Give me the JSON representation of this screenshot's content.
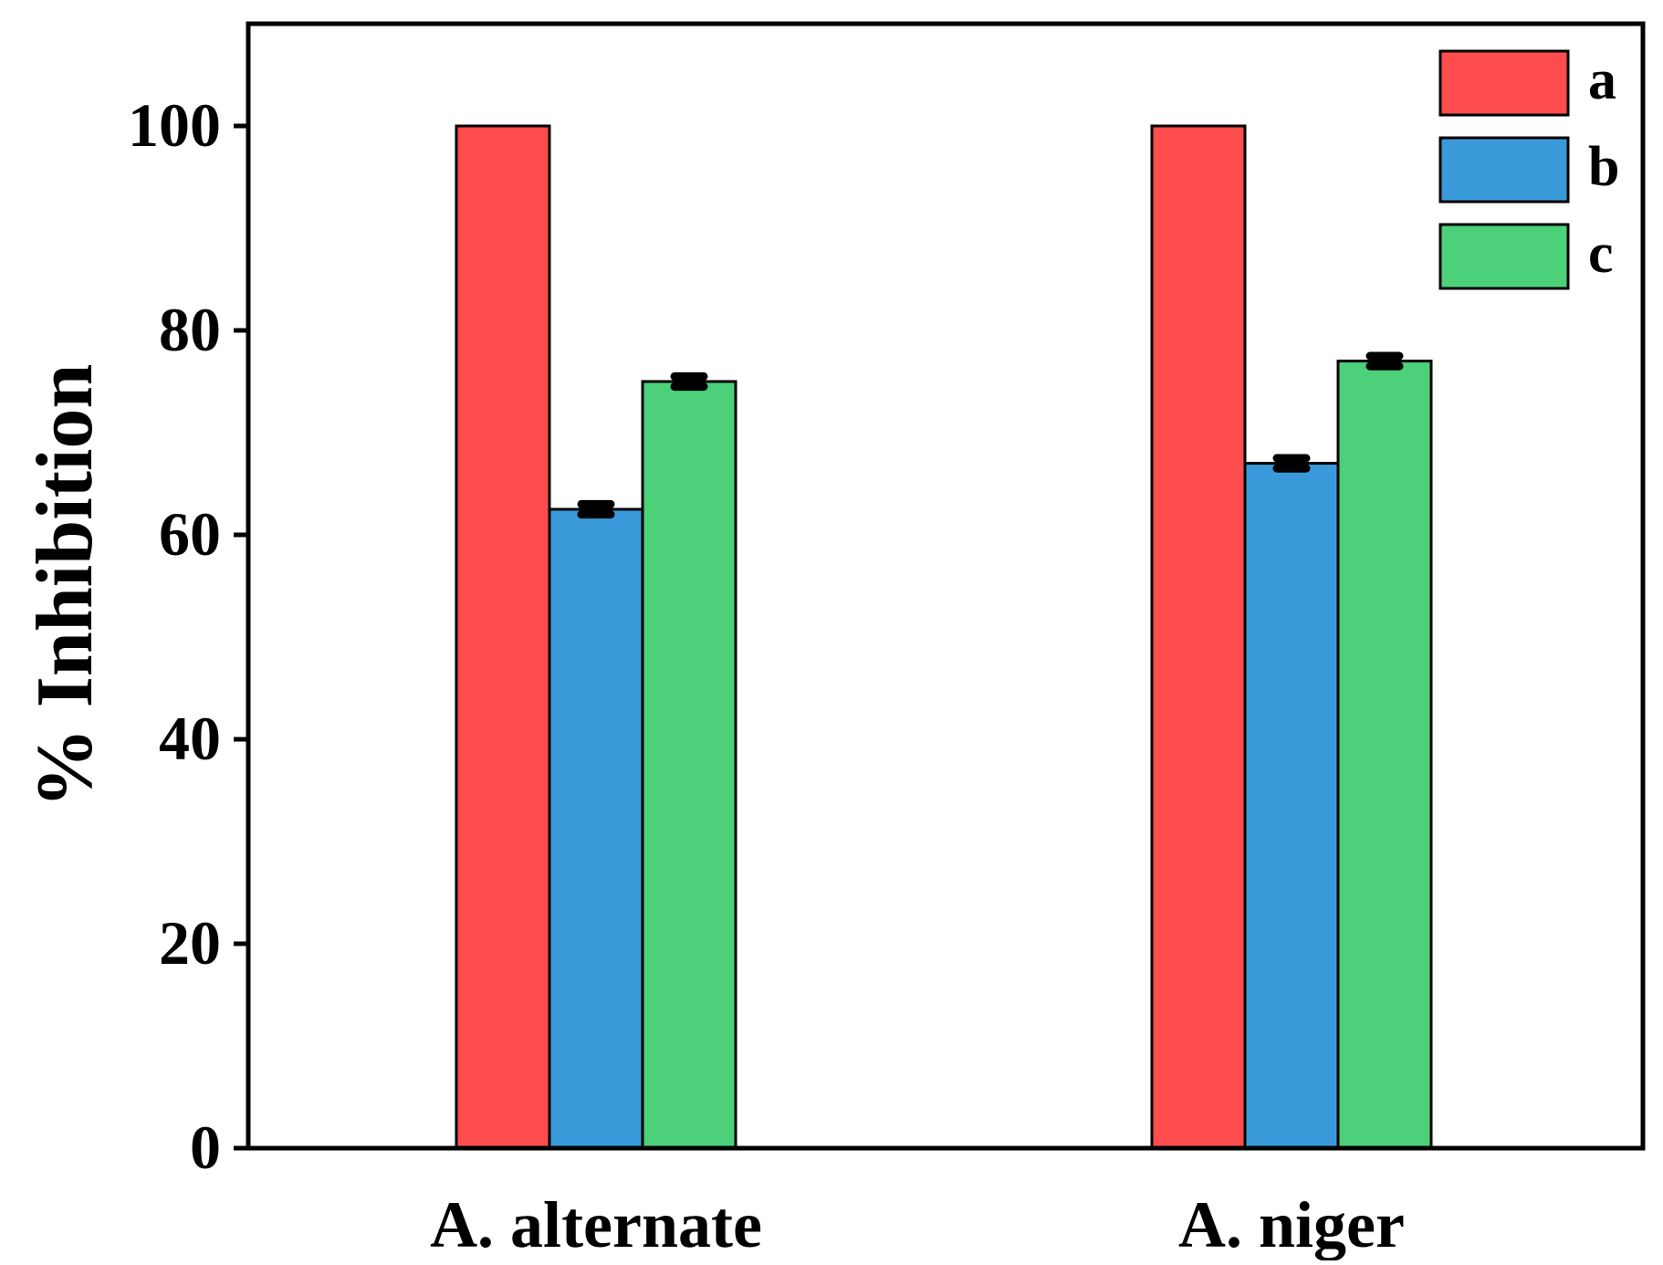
{
  "chart_data": {
    "type": "bar",
    "title": "",
    "xlabel": "",
    "ylabel": "% Inhibition",
    "ylim": [
      0,
      110
    ],
    "yticks": [
      0,
      20,
      40,
      60,
      80,
      100
    ],
    "grid": false,
    "legend_position": "top-right",
    "categories": [
      "A. alternate",
      "A. niger"
    ],
    "series": [
      {
        "name": "a",
        "color": "#ff4d4d",
        "values": [
          100,
          100
        ],
        "errors": [
          0,
          0
        ]
      },
      {
        "name": "b",
        "color": "#3a9ad9",
        "values": [
          62.5,
          67
        ],
        "errors": [
          0.5,
          0.5
        ]
      },
      {
        "name": "c",
        "color": "#4cd17a",
        "values": [
          75,
          77
        ],
        "errors": [
          0.5,
          0.5
        ]
      }
    ]
  }
}
